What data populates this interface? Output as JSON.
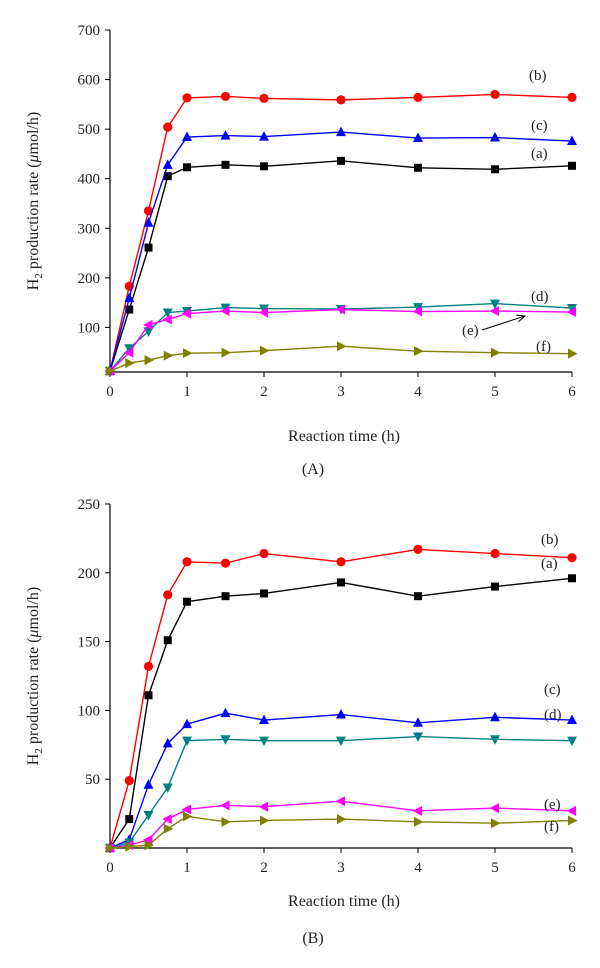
{
  "chart_data": [
    {
      "type": "line",
      "panel_label": "(A)",
      "xlabel": "Reaction time (h)",
      "ylabel_main": "H",
      "ylabel_sub": "2",
      "ylabel_rest": " production rate (",
      "ylabel_mu": "μ",
      "ylabel_end": "mol/h)",
      "xlim": [
        0,
        6
      ],
      "ylim": [
        10,
        700
      ],
      "xticks": [
        0,
        1,
        2,
        3,
        4,
        5,
        6
      ],
      "yticks": [
        100,
        200,
        300,
        400,
        500,
        600,
        700
      ],
      "grid": false,
      "series": [
        {
          "label": "(a)",
          "color": "#000000",
          "marker": "square",
          "x": [
            0,
            0.25,
            0.5,
            0.75,
            1,
            1.5,
            2,
            3,
            4,
            5,
            6
          ],
          "y": [
            12,
            136,
            261,
            405,
            423,
            428,
            425,
            436,
            422,
            419,
            426
          ]
        },
        {
          "label": "(b)",
          "color": "#ff0000",
          "marker": "circle",
          "x": [
            0,
            0.25,
            0.5,
            0.75,
            1,
            1.5,
            2,
            3,
            4,
            5,
            6
          ],
          "y": [
            12,
            183,
            335,
            504,
            563,
            566,
            562,
            559,
            564,
            570,
            564
          ]
        },
        {
          "label": "(c)",
          "color": "#0000ff",
          "marker": "triangle-up",
          "x": [
            0,
            0.25,
            0.5,
            0.75,
            1,
            1.5,
            2,
            3,
            4,
            5,
            6
          ],
          "y": [
            12,
            159,
            311,
            428,
            484,
            487,
            485,
            494,
            482,
            483,
            476
          ]
        },
        {
          "label": "(d)",
          "color": "#008080",
          "marker": "triangle-down",
          "x": [
            0,
            0.25,
            0.5,
            0.75,
            1,
            1.5,
            2,
            3,
            4,
            5,
            6
          ],
          "y": [
            12,
            58,
            92,
            130,
            133,
            140,
            138,
            137,
            141,
            148,
            139
          ]
        },
        {
          "label": "(e)",
          "color": "#ff00ff",
          "marker": "triangle-left",
          "x": [
            0,
            0.25,
            0.5,
            0.75,
            1,
            1.5,
            2,
            3,
            4,
            5,
            6
          ],
          "y": [
            12,
            49,
            105,
            116,
            128,
            133,
            130,
            136,
            132,
            133,
            131
          ]
        },
        {
          "label": "(f)",
          "color": "#808000",
          "marker": "triangle-right",
          "x": [
            0,
            0.25,
            0.5,
            0.75,
            1,
            1.5,
            2,
            3,
            4,
            5,
            6
          ],
          "y": [
            12,
            28,
            34,
            43,
            48,
            49,
            53,
            62,
            52,
            49,
            47
          ]
        }
      ]
    },
    {
      "type": "line",
      "panel_label": "(B)",
      "xlabel": "Reaction time (h)",
      "ylabel_main": "H",
      "ylabel_sub": "2",
      "ylabel_rest": " production rate (",
      "ylabel_mu": "μ",
      "ylabel_end": "mol/h)",
      "xlim": [
        0,
        6
      ],
      "ylim": [
        0,
        250
      ],
      "xticks": [
        0,
        1,
        2,
        3,
        4,
        5,
        6
      ],
      "yticks": [
        50,
        100,
        150,
        200,
        250
      ],
      "grid": false,
      "series": [
        {
          "label": "(a)",
          "color": "#000000",
          "marker": "square",
          "x": [
            0,
            0.25,
            0.5,
            0.75,
            1,
            1.5,
            2,
            3,
            4,
            5,
            6
          ],
          "y": [
            0,
            21,
            111,
            151,
            179,
            183,
            185,
            193,
            183,
            190,
            196
          ]
        },
        {
          "label": "(b)",
          "color": "#ff0000",
          "marker": "circle",
          "x": [
            0,
            0.25,
            0.5,
            0.75,
            1,
            1.5,
            2,
            3,
            4,
            5,
            6
          ],
          "y": [
            0,
            49,
            132,
            184,
            208,
            207,
            214,
            208,
            217,
            214,
            211
          ]
        },
        {
          "label": "(c)",
          "color": "#0000ff",
          "marker": "triangle-up",
          "x": [
            0,
            0.25,
            0.5,
            0.75,
            1,
            1.5,
            2,
            3,
            4,
            5,
            6
          ],
          "y": [
            0,
            6,
            46,
            76,
            90,
            98,
            93,
            97,
            91,
            95,
            93
          ]
        },
        {
          "label": "(d)",
          "color": "#008080",
          "marker": "triangle-down",
          "x": [
            0,
            0.25,
            0.5,
            0.75,
            1,
            1.5,
            2,
            3,
            4,
            5,
            6
          ],
          "y": [
            0,
            4,
            24,
            44,
            78,
            79,
            78,
            78,
            81,
            79,
            78
          ]
        },
        {
          "label": "(e)",
          "color": "#ff00ff",
          "marker": "triangle-left",
          "x": [
            0,
            0.25,
            0.5,
            0.75,
            1,
            1.5,
            2,
            3,
            4,
            5,
            6
          ],
          "y": [
            0,
            2,
            6,
            21,
            28,
            31,
            30,
            34,
            27,
            29,
            27
          ]
        },
        {
          "label": "(f)",
          "color": "#808000",
          "marker": "triangle-right",
          "x": [
            0,
            0.25,
            0.5,
            0.75,
            1,
            1.5,
            2,
            3,
            4,
            5,
            6
          ],
          "y": [
            0,
            1,
            2,
            14,
            23,
            19,
            20,
            21,
            19,
            18,
            20
          ]
        }
      ]
    }
  ]
}
